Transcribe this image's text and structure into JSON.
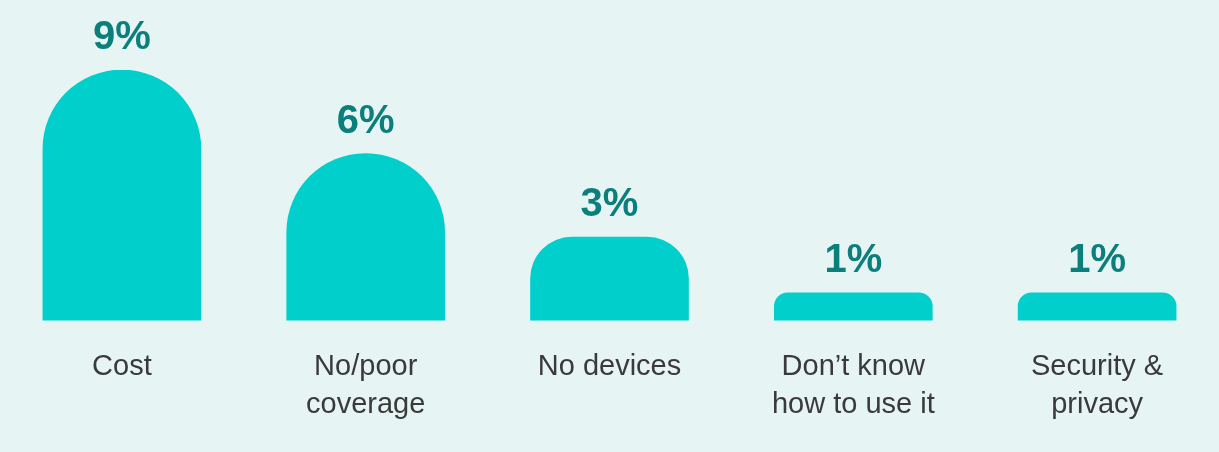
{
  "chart_data": {
    "type": "bar",
    "categories": [
      "Cost",
      "No/poor coverage",
      "No devices",
      "Don’t know how to use it",
      "Security & privacy"
    ],
    "values": [
      9,
      6,
      3,
      1,
      1
    ],
    "value_labels": [
      "9%",
      "6%",
      "3%",
      "1%",
      "1%"
    ],
    "color": "#00cfcc",
    "grid": false,
    "legend": false
  }
}
